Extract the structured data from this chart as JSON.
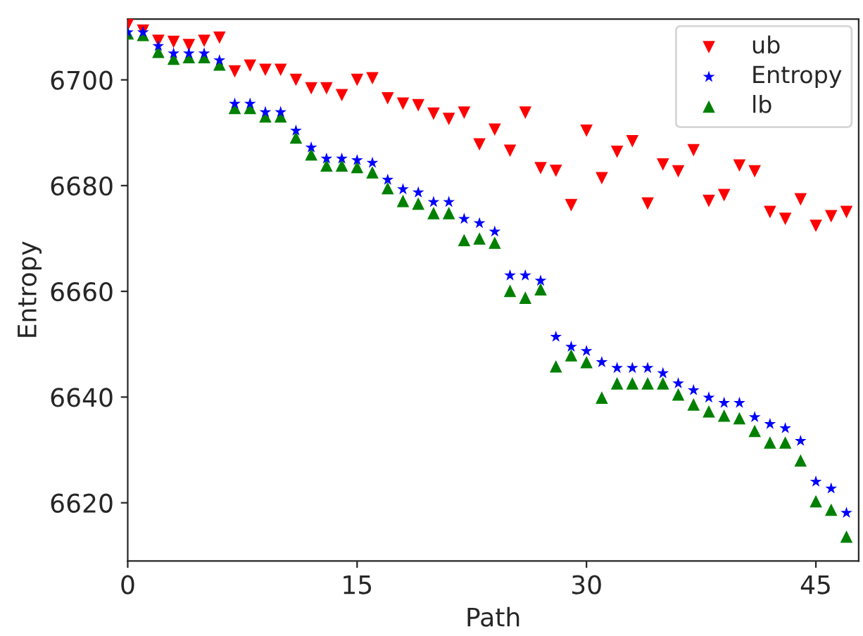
{
  "chart_data": {
    "type": "scatter",
    "xlabel": "Path",
    "ylabel": "Entropy",
    "x": [
      0,
      1,
      2,
      3,
      4,
      5,
      6,
      7,
      8,
      9,
      10,
      11,
      12,
      13,
      14,
      15,
      16,
      17,
      18,
      19,
      20,
      21,
      22,
      23,
      24,
      25,
      26,
      27,
      28,
      29,
      30,
      31,
      32,
      33,
      34,
      35,
      36,
      37,
      38,
      39,
      40,
      41,
      42,
      43,
      44,
      45,
      46,
      47
    ],
    "series": [
      {
        "name": "ub",
        "color": "#ff0000",
        "marker": "triangle_down",
        "values": [
          6710.4,
          6709.3,
          6707.4,
          6707.2,
          6706.6,
          6707.4,
          6708,
          6701.6,
          6702.7,
          6701.9,
          6701.9,
          6700,
          6698.4,
          6698.4,
          6697.1,
          6700,
          6700.3,
          6696.5,
          6695.5,
          6695.2,
          6693.6,
          6692.6,
          6693.8,
          6687.8,
          6690.6,
          6686.6,
          6693.8,
          6683.3,
          6682.8,
          6676.3,
          6690.4,
          6681.4,
          6686.4,
          6688.4,
          6676.6,
          6684,
          6682.7,
          6686.7,
          6677.1,
          6678.2,
          6683.8,
          6682.7,
          6675,
          6673.7,
          6677.4,
          6672.4,
          6674.2,
          6675
        ]
      },
      {
        "name": "Entropy",
        "color": "#0000ff",
        "marker": "star",
        "values": [
          6709,
          6709,
          6706.4,
          6705,
          6705,
          6705,
          6703.7,
          6695.5,
          6695.5,
          6693.9,
          6693.9,
          6690.4,
          6687.2,
          6685.1,
          6685.1,
          6684.8,
          6684.3,
          6681.1,
          6679.3,
          6678.7,
          6676.9,
          6676.9,
          6673.7,
          6672.9,
          6671.3,
          6663,
          6663,
          6662,
          6651.4,
          6649.5,
          6648.7,
          6646.6,
          6645.5,
          6645.5,
          6645.5,
          6644.5,
          6642.6,
          6641.3,
          6639.9,
          6638.9,
          6638.9,
          6636.2,
          6634.9,
          6634.1,
          6631.7,
          6624,
          6622.7,
          6618.1
        ]
      },
      {
        "name": "lb",
        "color": "#008000",
        "marker": "triangle",
        "values": [
          6708.8,
          6708.5,
          6705.3,
          6704,
          6704.3,
          6704.3,
          6702.9,
          6694.7,
          6694.7,
          6693.1,
          6693.1,
          6689.1,
          6685.9,
          6683.8,
          6683.8,
          6683.5,
          6682.5,
          6679.5,
          6677.1,
          6676.6,
          6674.8,
          6674.8,
          6669.7,
          6670,
          6669.2,
          6660.1,
          6658.8,
          6660.4,
          6645.8,
          6647.9,
          6646.6,
          6639.9,
          6642.6,
          6642.6,
          6642.6,
          6642.6,
          6640.5,
          6638.6,
          6637.3,
          6636.5,
          6636,
          6633.6,
          6631.4,
          6631.4,
          6628,
          6620.3,
          6618.7,
          6613.6
        ]
      }
    ],
    "xlim": [
      0,
      47.8
    ],
    "ylim": [
      6609,
      6711.5
    ],
    "xticks": [
      0,
      15,
      30,
      45
    ],
    "yticks": [
      6620,
      6640,
      6660,
      6680,
      6700
    ],
    "grid": false,
    "legend": "top right"
  }
}
